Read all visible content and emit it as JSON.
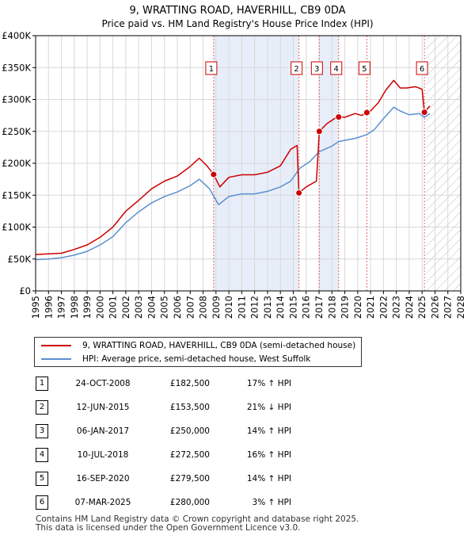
{
  "chart_data": {
    "type": "line",
    "title": "9, WRATTING ROAD, HAVERHILL, CB9 0DA",
    "subtitle": "Price paid vs. HM Land Registry's House Price Index (HPI)",
    "xlim": [
      1995,
      2028
    ],
    "ylim": [
      0,
      400000
    ],
    "x_ticks": [
      1995,
      1996,
      1997,
      1998,
      1999,
      2000,
      2001,
      2002,
      2003,
      2004,
      2005,
      2006,
      2007,
      2008,
      2009,
      2010,
      2011,
      2012,
      2013,
      2014,
      2015,
      2016,
      2017,
      2018,
      2019,
      2020,
      2021,
      2022,
      2023,
      2024,
      2025,
      2026,
      2027,
      2028
    ],
    "y_ticks": [
      {
        "value": 0,
        "label": "£0"
      },
      {
        "value": 50000,
        "label": "£50K"
      },
      {
        "value": 100000,
        "label": "£100K"
      },
      {
        "value": 150000,
        "label": "£150K"
      },
      {
        "value": 200000,
        "label": "£200K"
      },
      {
        "value": 250000,
        "label": "£250K"
      },
      {
        "value": 300000,
        "label": "£300K"
      },
      {
        "value": 350000,
        "label": "£350K"
      },
      {
        "value": 400000,
        "label": "£400K"
      }
    ],
    "forecast_start": 2025.3,
    "shaded_periods": [
      [
        2008.82,
        2015.44
      ],
      [
        2017.02,
        2018.52
      ]
    ],
    "series": [
      {
        "name": "9, WRATTING ROAD, HAVERHILL, CB9 0DA (semi-detached house)",
        "color": "#cc0000",
        "points": [
          [
            1995.0,
            57000
          ],
          [
            1996.0,
            58000
          ],
          [
            1997.0,
            59000
          ],
          [
            1998.0,
            65000
          ],
          [
            1999.0,
            72000
          ],
          [
            2000.0,
            84000
          ],
          [
            2001.0,
            100000
          ],
          [
            2002.0,
            125000
          ],
          [
            2003.0,
            142000
          ],
          [
            2004.0,
            160000
          ],
          [
            2005.0,
            172000
          ],
          [
            2006.0,
            180000
          ],
          [
            2007.0,
            195000
          ],
          [
            2007.7,
            208000
          ],
          [
            2008.3,
            196000
          ],
          [
            2008.82,
            182500
          ],
          [
            2009.3,
            163000
          ],
          [
            2010.0,
            178000
          ],
          [
            2011.0,
            182000
          ],
          [
            2012.0,
            182000
          ],
          [
            2013.0,
            186000
          ],
          [
            2014.0,
            196000
          ],
          [
            2014.8,
            222000
          ],
          [
            2015.3,
            228000
          ],
          [
            2015.44,
            153500
          ],
          [
            2016.0,
            163000
          ],
          [
            2016.8,
            172000
          ],
          [
            2017.02,
            250000
          ],
          [
            2017.6,
            262000
          ],
          [
            2018.2,
            270000
          ],
          [
            2018.52,
            272500
          ],
          [
            2019.0,
            272000
          ],
          [
            2019.8,
            278000
          ],
          [
            2020.3,
            275000
          ],
          [
            2020.71,
            279500
          ],
          [
            2021.0,
            282000
          ],
          [
            2021.6,
            295000
          ],
          [
            2022.2,
            315000
          ],
          [
            2022.8,
            330000
          ],
          [
            2023.3,
            318000
          ],
          [
            2023.8,
            318000
          ],
          [
            2024.5,
            320000
          ],
          [
            2025.0,
            316000
          ],
          [
            2025.18,
            280000
          ],
          [
            2025.6,
            290000
          ]
        ]
      },
      {
        "name": "HPI: Average price, semi-detached house, West Suffolk",
        "color": "#5b8fd0",
        "points": [
          [
            1995.0,
            49000
          ],
          [
            1996.0,
            50000
          ],
          [
            1997.0,
            52000
          ],
          [
            1998.0,
            56000
          ],
          [
            1999.0,
            62000
          ],
          [
            2000.0,
            72000
          ],
          [
            2001.0,
            85000
          ],
          [
            2002.0,
            107000
          ],
          [
            2003.0,
            124000
          ],
          [
            2004.0,
            138000
          ],
          [
            2005.0,
            148000
          ],
          [
            2006.0,
            155000
          ],
          [
            2007.0,
            165000
          ],
          [
            2007.7,
            175000
          ],
          [
            2008.5,
            160000
          ],
          [
            2009.2,
            135000
          ],
          [
            2010.0,
            148000
          ],
          [
            2011.0,
            152000
          ],
          [
            2012.0,
            152000
          ],
          [
            2013.0,
            156000
          ],
          [
            2014.0,
            163000
          ],
          [
            2014.8,
            172000
          ],
          [
            2015.5,
            192000
          ],
          [
            2016.3,
            203000
          ],
          [
            2017.0,
            218000
          ],
          [
            2018.0,
            227000
          ],
          [
            2018.52,
            234000
          ],
          [
            2019.0,
            236000
          ],
          [
            2019.8,
            239000
          ],
          [
            2020.71,
            245000
          ],
          [
            2021.3,
            253000
          ],
          [
            2022.0,
            270000
          ],
          [
            2022.8,
            288000
          ],
          [
            2023.3,
            282000
          ],
          [
            2024.0,
            276000
          ],
          [
            2024.8,
            278000
          ],
          [
            2025.18,
            272000
          ],
          [
            2025.6,
            278000
          ]
        ]
      }
    ],
    "sales": [
      {
        "num": "1",
        "date": "24-OCT-2008",
        "price": "£182,500",
        "hpi": "17% ↑ HPI",
        "x": 2008.82,
        "y": 182500
      },
      {
        "num": "2",
        "date": "12-JUN-2015",
        "price": "£153,500",
        "hpi": "21% ↓ HPI",
        "x": 2015.44,
        "y": 153500
      },
      {
        "num": "3",
        "date": "06-JAN-2017",
        "price": "£250,000",
        "hpi": "14% ↑ HPI",
        "x": 2017.02,
        "y": 250000
      },
      {
        "num": "4",
        "date": "10-JUL-2018",
        "price": "£272,500",
        "hpi": "16% ↑ HPI",
        "x": 2018.52,
        "y": 272500
      },
      {
        "num": "5",
        "date": "16-SEP-2020",
        "price": "£279,500",
        "hpi": "14% ↑ HPI",
        "x": 2020.71,
        "y": 279500
      },
      {
        "num": "6",
        "date": "07-MAR-2025",
        "price": "£280,000",
        "hpi": "3% ↑ HPI",
        "x": 2025.18,
        "y": 280000
      }
    ]
  },
  "legend": {
    "property_label": "9, WRATTING ROAD, HAVERHILL, CB9 0DA (semi-detached house)",
    "hpi_label": "HPI: Average price, semi-detached house, West Suffolk"
  },
  "footer": {
    "line1": "Contains HM Land Registry data © Crown copyright and database right 2025.",
    "line2": "This data is licensed under the Open Government Licence v3.0."
  }
}
